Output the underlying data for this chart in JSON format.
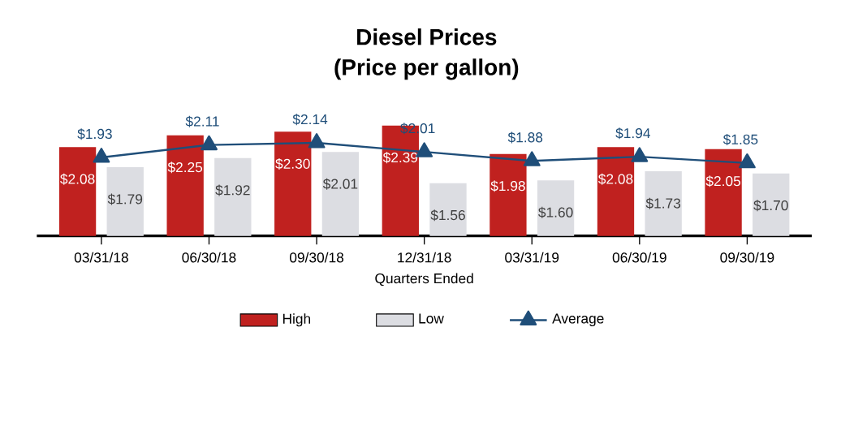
{
  "chart_data": {
    "type": "bar",
    "title": "Diesel Prices",
    "subtitle": "(Price per gallon)",
    "xlabel": "Quarters Ended",
    "categories": [
      "03/31/18",
      "06/30/18",
      "09/30/18",
      "12/31/18",
      "03/31/19",
      "06/30/19",
      "09/30/19"
    ],
    "ylim": [
      0.8,
      2.39
    ],
    "legend": "bottom",
    "marker": "triangle",
    "series": [
      {
        "name": "High",
        "color": "#c0211f",
        "values": [
          2.08,
          2.25,
          2.3,
          2.39,
          1.98,
          2.08,
          2.05
        ],
        "value_labels": [
          "$2.08",
          "$2.25",
          "$2.30",
          "$2.39",
          "$1.98",
          "$2.08",
          "$2.05"
        ]
      },
      {
        "name": "Low",
        "color": "#dcdde2",
        "values": [
          1.79,
          1.92,
          2.01,
          1.56,
          1.6,
          1.73,
          1.7
        ],
        "value_labels": [
          "$1.79",
          "$1.92",
          "$2.01",
          "$1.56",
          "$1.60",
          "$1.73",
          "$1.70"
        ]
      },
      {
        "name": "Average",
        "type": "line",
        "color": "#1f4e79",
        "values": [
          1.93,
          2.11,
          2.14,
          2.01,
          1.88,
          1.94,
          1.85
        ],
        "value_labels": [
          "$1.93",
          "$2.11",
          "$2.14",
          "$2.01",
          "$1.88",
          "$1.94",
          "$1.85"
        ]
      }
    ]
  }
}
